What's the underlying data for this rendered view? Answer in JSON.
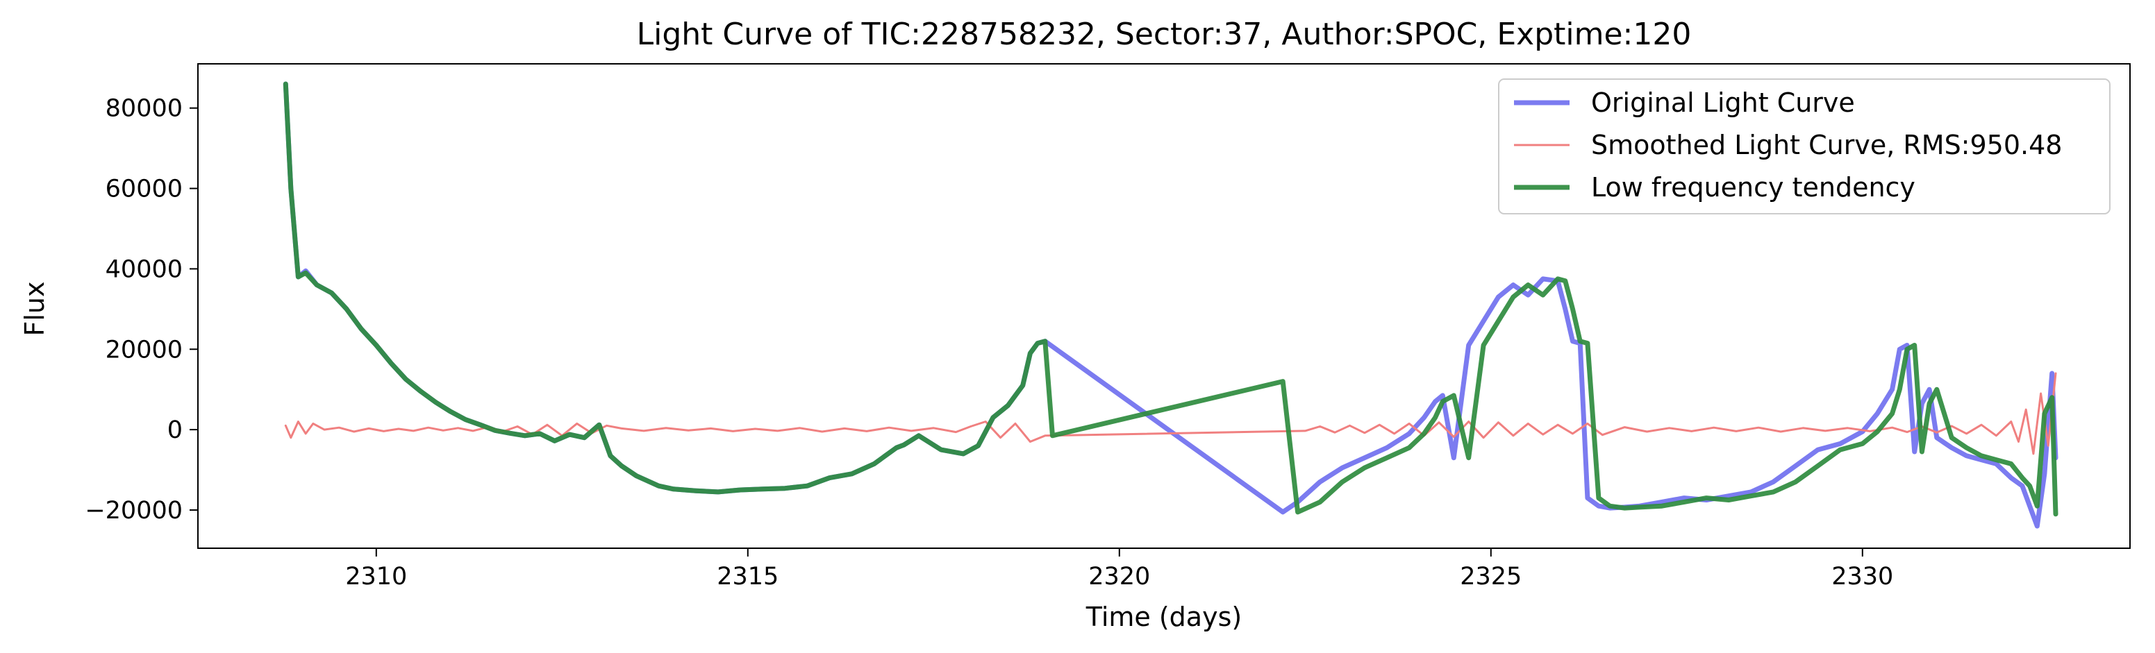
{
  "chart_data": {
    "type": "line",
    "title": "Light Curve of TIC:228758232, Sector:37, Author:SPOC, Exptime:120",
    "xlabel": "Time (days)",
    "ylabel": "Flux",
    "xlim": [
      2307.6,
      2333.6
    ],
    "ylim": [
      -29500,
      91000
    ],
    "xticks": [
      2310,
      2315,
      2320,
      2325,
      2330
    ],
    "xtick_labels": [
      "2310",
      "2315",
      "2320",
      "2325",
      "2330"
    ],
    "yticks": [
      -20000,
      0,
      20000,
      40000,
      60000,
      80000
    ],
    "ytick_labels": [
      "−20000",
      "0",
      "20000",
      "40000",
      "60000",
      "80000"
    ],
    "grid": false,
    "legend_position": "top-right",
    "series": [
      {
        "name": "Original Light Curve",
        "color": "#7b7bf0",
        "x": [
          2308.78,
          2308.85,
          2308.95,
          2309.05,
          2309.2,
          2309.4,
          2309.6,
          2309.8,
          2310.0,
          2310.2,
          2310.4,
          2310.6,
          2310.8,
          2311.0,
          2311.2,
          2311.4,
          2311.6,
          2311.8,
          2312.0,
          2312.2,
          2312.4,
          2312.6,
          2312.8,
          2313.0,
          2313.15,
          2313.3,
          2313.5,
          2313.8,
          2314.0,
          2314.3,
          2314.6,
          2314.9,
          2315.2,
          2315.5,
          2315.8,
          2316.1,
          2316.4,
          2316.7,
          2317.0,
          2317.1,
          2317.3,
          2317.6,
          2317.9,
          2318.1,
          2318.3,
          2318.5,
          2318.7,
          2318.8,
          2318.9,
          2319.0,
          2322.2,
          2322.4,
          2322.7,
          2323.0,
          2323.3,
          2323.6,
          2323.9,
          2324.1,
          2324.25,
          2324.35,
          2324.5,
          2324.7,
          2324.9,
          2325.1,
          2325.3,
          2325.5,
          2325.7,
          2325.9,
          2326.0,
          2326.1,
          2326.2,
          2326.3,
          2326.45,
          2326.6,
          2326.8,
          2327.0,
          2327.3,
          2327.6,
          2327.9,
          2328.2,
          2328.5,
          2328.8,
          2329.1,
          2329.4,
          2329.7,
          2330.0,
          2330.2,
          2330.4,
          2330.5,
          2330.6,
          2330.7,
          2330.8,
          2330.9,
          2331.0,
          2331.2,
          2331.4,
          2331.6,
          2331.8,
          2332.0,
          2332.15,
          2332.25,
          2332.35,
          2332.45,
          2332.55,
          2332.6
        ],
        "y": [
          86000,
          60000,
          38000,
          39500,
          36000,
          34000,
          30000,
          25000,
          21000,
          16500,
          12500,
          9500,
          6800,
          4500,
          2500,
          1200,
          -200,
          -900,
          -1500,
          -1000,
          -2800,
          -1200,
          -2000,
          1200,
          -6500,
          -9000,
          -11500,
          -14000,
          -14800,
          -15200,
          -15500,
          -15000,
          -14800,
          -14600,
          -14000,
          -12000,
          -11000,
          -8500,
          -4500,
          -3800,
          -1500,
          -5000,
          -6000,
          -4000,
          3000,
          6000,
          11000,
          19000,
          21500,
          22000,
          -20500,
          -18000,
          -13000,
          -9500,
          -7000,
          -4500,
          -1000,
          3000,
          7000,
          8500,
          -7000,
          21000,
          27000,
          33000,
          36000,
          33500,
          37500,
          37000,
          30000,
          22000,
          21500,
          -17000,
          -19000,
          -19500,
          -19300,
          -19000,
          -18000,
          -17000,
          -17500,
          -16500,
          -15500,
          -13000,
          -9000,
          -5000,
          -3500,
          -500,
          4000,
          10000,
          20000,
          21000,
          -5500,
          6500,
          10000,
          -2000,
          -4500,
          -6500,
          -7500,
          -8500,
          -12000,
          -14000,
          -19000,
          -24000,
          -11000,
          14000,
          -7000
        ]
      },
      {
        "name": "Smoothed Light Curve, RMS:950.48",
        "color": "#f08080",
        "x": [
          2308.78,
          2308.85,
          2308.95,
          2309.05,
          2309.15,
          2309.3,
          2309.5,
          2309.7,
          2309.9,
          2310.1,
          2310.3,
          2310.5,
          2310.7,
          2310.9,
          2311.1,
          2311.3,
          2311.5,
          2311.7,
          2311.9,
          2312.1,
          2312.3,
          2312.5,
          2312.7,
          2312.9,
          2313.1,
          2313.3,
          2313.6,
          2313.9,
          2314.2,
          2314.5,
          2314.8,
          2315.1,
          2315.4,
          2315.7,
          2316.0,
          2316.3,
          2316.6,
          2316.9,
          2317.2,
          2317.5,
          2317.8,
          2318.0,
          2318.2,
          2318.4,
          2318.6,
          2318.8,
          2319.0,
          2322.5,
          2322.7,
          2322.9,
          2323.1,
          2323.3,
          2323.5,
          2323.7,
          2323.9,
          2324.1,
          2324.3,
          2324.5,
          2324.7,
          2324.9,
          2325.1,
          2325.3,
          2325.5,
          2325.7,
          2325.9,
          2326.1,
          2326.3,
          2326.5,
          2326.8,
          2327.1,
          2327.4,
          2327.7,
          2328.0,
          2328.3,
          2328.6,
          2328.9,
          2329.2,
          2329.5,
          2329.8,
          2330.1,
          2330.4,
          2330.6,
          2330.8,
          2331.0,
          2331.2,
          2331.4,
          2331.6,
          2331.8,
          2332.0,
          2332.1,
          2332.2,
          2332.3,
          2332.4,
          2332.5,
          2332.6
        ],
        "y": [
          1000,
          -2000,
          2000,
          -1000,
          1500,
          0,
          500,
          -500,
          300,
          -400,
          200,
          -300,
          500,
          -200,
          400,
          -300,
          600,
          -500,
          800,
          -1200,
          1200,
          -1500,
          1500,
          -900,
          1000,
          300,
          -300,
          400,
          -200,
          300,
          -400,
          200,
          -300,
          400,
          -500,
          300,
          -400,
          500,
          -300,
          400,
          -600,
          800,
          2000,
          -2000,
          1500,
          -3000,
          -1500,
          -300,
          800,
          -700,
          1000,
          -800,
          1200,
          -1000,
          1500,
          -1500,
          1800,
          -1800,
          2000,
          -2000,
          1800,
          -1500,
          1500,
          -1200,
          1200,
          -1000,
          1500,
          -1300,
          600,
          -500,
          400,
          -400,
          500,
          -400,
          500,
          -500,
          400,
          -300,
          400,
          -400,
          500,
          -600,
          800,
          -700,
          900,
          -1000,
          1200,
          -1500,
          2000,
          -3000,
          5000,
          -6000,
          9000,
          -4000,
          14000
        ]
      },
      {
        "name": "Low frequency tendency",
        "color": "#2e8b3e",
        "x": [
          2308.78,
          2308.85,
          2308.95,
          2309.05,
          2309.2,
          2309.4,
          2309.6,
          2309.8,
          2310.0,
          2310.2,
          2310.4,
          2310.6,
          2310.8,
          2311.0,
          2311.2,
          2311.4,
          2311.6,
          2311.8,
          2312.0,
          2312.2,
          2312.4,
          2312.6,
          2312.8,
          2313.0,
          2313.15,
          2313.3,
          2313.5,
          2313.8,
          2314.0,
          2314.3,
          2314.6,
          2314.9,
          2315.2,
          2315.5,
          2315.8,
          2316.1,
          2316.4,
          2316.7,
          2317.0,
          2317.1,
          2317.3,
          2317.6,
          2317.9,
          2318.1,
          2318.3,
          2318.5,
          2318.7,
          2318.8,
          2318.9,
          2319.0,
          2319.1,
          2322.2,
          2322.4,
          2322.7,
          2323.0,
          2323.3,
          2323.6,
          2323.9,
          2324.1,
          2324.25,
          2324.35,
          2324.5,
          2324.7,
          2324.9,
          2325.1,
          2325.3,
          2325.5,
          2325.7,
          2325.9,
          2326.0,
          2326.1,
          2326.2,
          2326.3,
          2326.45,
          2326.6,
          2326.8,
          2327.0,
          2327.3,
          2327.6,
          2327.9,
          2328.2,
          2328.5,
          2328.8,
          2329.1,
          2329.4,
          2329.7,
          2330.0,
          2330.2,
          2330.4,
          2330.5,
          2330.6,
          2330.7,
          2330.8,
          2330.9,
          2331.0,
          2331.2,
          2331.4,
          2331.6,
          2331.8,
          2332.0,
          2332.15,
          2332.25,
          2332.35,
          2332.45,
          2332.55,
          2332.6
        ],
        "y": [
          86000,
          60000,
          38000,
          39000,
          36000,
          34000,
          30000,
          25000,
          21000,
          16500,
          12500,
          9500,
          6800,
          4500,
          2500,
          1200,
          -200,
          -900,
          -1500,
          -1000,
          -2800,
          -1200,
          -2000,
          1200,
          -6500,
          -9000,
          -11500,
          -14000,
          -14800,
          -15200,
          -15500,
          -15000,
          -14800,
          -14600,
          -14000,
          -12000,
          -11000,
          -8500,
          -4500,
          -3800,
          -1500,
          -5000,
          -6000,
          -4000,
          3000,
          6000,
          11000,
          19000,
          21500,
          22000,
          -1500,
          12000,
          -20500,
          -18000,
          -13000,
          -9500,
          -7000,
          -4500,
          -1000,
          3000,
          7000,
          8500,
          -7000,
          21000,
          27000,
          33000,
          36000,
          33500,
          37500,
          37000,
          30000,
          22000,
          21500,
          -17000,
          -19000,
          -19500,
          -19300,
          -19000,
          -18000,
          -17000,
          -17500,
          -16500,
          -15500,
          -13000,
          -9000,
          -5000,
          -3500,
          -500,
          4000,
          10000,
          20000,
          21000,
          -5500,
          6500,
          10000,
          -2000,
          -4500,
          -6500,
          -7500,
          -8500,
          -12000,
          -14000,
          -19000,
          4000,
          8000,
          -21000
        ]
      }
    ]
  }
}
